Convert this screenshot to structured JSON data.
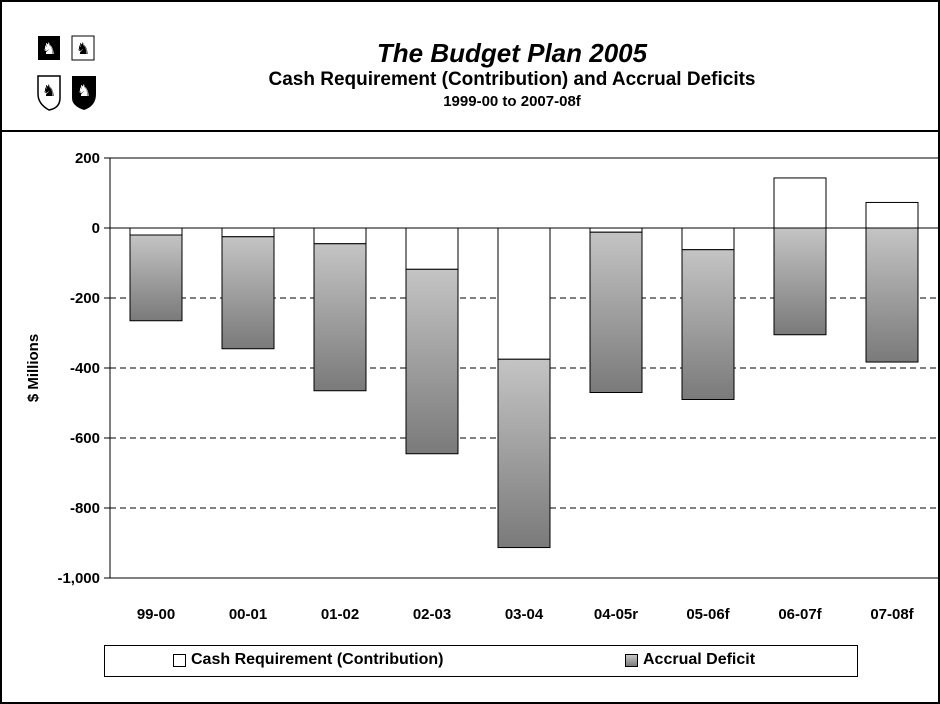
{
  "header": {
    "title": "The Budget Plan 2005",
    "subtitle": "Cash Requirement (Contribution) and Accrual Deficits",
    "period": "1999-00 to 2007-08f"
  },
  "chart_data": {
    "type": "bar",
    "title": "The Budget Plan 2005",
    "subtitle": "Cash Requirement (Contribution) and Accrual Deficits",
    "xlabel": "",
    "ylabel": "$ Millions",
    "ylim": [
      -1000,
      200
    ],
    "yticks": [
      200,
      0,
      -200,
      -400,
      -600,
      -800,
      -1000
    ],
    "ytick_labels": [
      "200",
      "0",
      "-200",
      "-400",
      "-600",
      "-800",
      "-1,000"
    ],
    "grid": "horizontal dashed",
    "legend_position": "bottom",
    "categories": [
      "99-00",
      "00-01",
      "01-02",
      "02-03",
      "03-04",
      "04-05r",
      "05-06f",
      "06-07f",
      "07-08f"
    ],
    "series": [
      {
        "name": "Cash Requirement (Contribution)",
        "values": [
          -20,
          -25,
          -45,
          -118,
          -375,
          -12,
          -62,
          143,
          73
        ]
      },
      {
        "name": "Accrual Deficit",
        "values": [
          -265,
          -345,
          -465,
          -645,
          -913,
          -470,
          -490,
          -305,
          -383
        ]
      }
    ],
    "colors": {
      "cash": "#ffffff",
      "accrual_top": "#c4c4c4",
      "accrual_bottom": "#7a7a7a",
      "outline": "#000000"
    }
  },
  "legend": {
    "cash_label": "Cash Requirement (Contribution)",
    "accrual_label": "Accrual Deficit"
  }
}
